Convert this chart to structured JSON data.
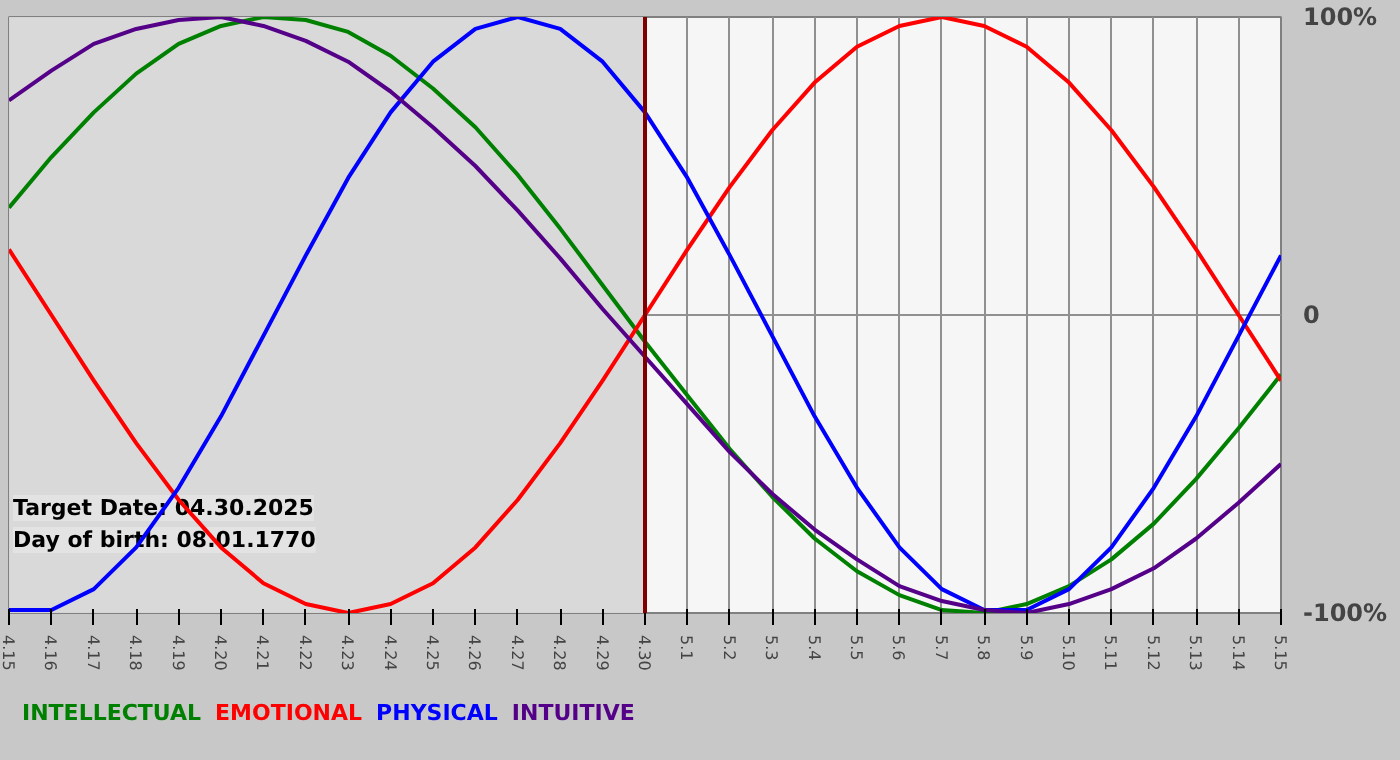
{
  "chart_data": {
    "type": "line",
    "categories": [
      "4.15",
      "4.16",
      "4.17",
      "4.18",
      "4.19",
      "4.20",
      "4.21",
      "4.22",
      "4.23",
      "4.24",
      "4.25",
      "4.26",
      "4.27",
      "4.28",
      "4.29",
      "4.30",
      "5.1",
      "5.2",
      "5.3",
      "5.4",
      "5.5",
      "5.6",
      "5.7",
      "5.8",
      "5.9",
      "5.10",
      "5.11",
      "5.12",
      "5.13",
      "5.14",
      "5.15"
    ],
    "series": [
      {
        "name": "INTELLECTUAL",
        "color": "#008000",
        "values": [
          36,
          53,
          68,
          81,
          91,
          97,
          100,
          99,
          95,
          87,
          76,
          63,
          47,
          29,
          10,
          -9,
          -27,
          -45,
          -61,
          -75,
          -86,
          -94,
          -99,
          -100,
          -97,
          -91,
          -82,
          -70,
          -55,
          -38,
          -20
        ]
      },
      {
        "name": "EMOTIONAL",
        "color": "#ff0000",
        "values": [
          22,
          0,
          -22,
          -43,
          -62,
          -78,
          -90,
          -97,
          -100,
          -97,
          -90,
          -78,
          -62,
          -43,
          -22,
          0,
          22,
          43,
          62,
          78,
          90,
          97,
          100,
          97,
          90,
          78,
          62,
          43,
          22,
          0,
          -22
        ]
      },
      {
        "name": "PHYSICAL",
        "color": "#0000ff",
        "values": [
          -99,
          -99,
          -92,
          -78,
          -58,
          -34,
          -7,
          20,
          46,
          68,
          85,
          96,
          100,
          96,
          85,
          68,
          46,
          20,
          -7,
          -34,
          -58,
          -78,
          -92,
          -99,
          -99,
          -92,
          -78,
          -58,
          -34,
          -7,
          20
        ]
      },
      {
        "name": "INTUITIVE",
        "color": "#550088",
        "values": [
          72,
          82,
          91,
          96,
          99,
          100,
          97,
          92,
          85,
          75,
          63,
          50,
          35,
          19,
          2,
          -14,
          -30,
          -46,
          -60,
          -72,
          -82,
          -91,
          -96,
          -99,
          -100,
          -97,
          -92,
          -85,
          -75,
          -63,
          -50
        ]
      }
    ],
    "ylim": [
      -100,
      100
    ],
    "yticks": [
      {
        "value": 100,
        "label": "100%"
      },
      0,
      {
        "value": -100,
        "label": "-100%"
      }
    ],
    "grid": true,
    "legend": "bottom",
    "line_style": "solid",
    "marker": "none",
    "ref_lines": [
      {
        "axis": "x",
        "value": "4.30",
        "color": "#800000"
      }
    ],
    "bands": [
      {
        "axis": "x",
        "from": "4.15",
        "to": "4.30",
        "color": "#d9d9d9"
      }
    ],
    "annotations": [
      "Target Date: 04.30.2025",
      "Day of birth: 08.01.1770"
    ]
  }
}
